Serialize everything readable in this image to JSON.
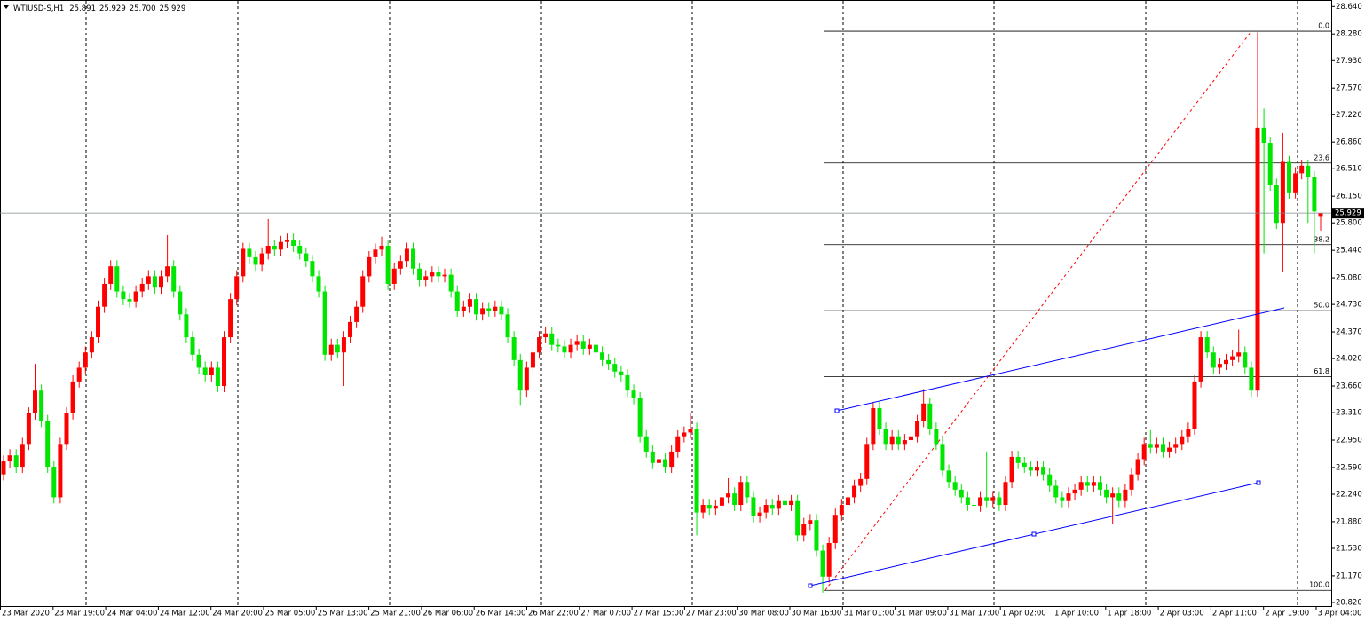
{
  "chart_data": {
    "type": "candlestick",
    "title": "WTIUSD-S,H1",
    "header_values": [
      "25.891",
      "25.929",
      "25.700",
      "25.929"
    ],
    "categories": [
      "23 Mar 2020",
      "23 Mar 19:00",
      "24 Mar 04:00",
      "24 Mar 12:00",
      "24 Mar 20:00",
      "25 Mar 05:00",
      "25 Mar 13:00",
      "25 Mar 21:00",
      "26 Mar 06:00",
      "26 Mar 14:00",
      "26 Mar 22:00",
      "27 Mar 07:00",
      "27 Mar 15:00",
      "27 Mar 23:00",
      "30 Mar 08:00",
      "30 Mar 16:00",
      "31 Mar 01:00",
      "31 Mar 09:00",
      "31 Mar 17:00",
      "1 Apr 02:00",
      "1 Apr 10:00",
      "1 Apr 18:00",
      "2 Apr 03:00",
      "2 Apr 11:00",
      "2 Apr 19:00",
      "3 Apr 04:00"
    ],
    "colors": {
      "up": "#ff0000",
      "down": "#00e600"
    },
    "series": {
      "open": [
        22.5,
        22.67,
        22.75,
        22.6,
        22.9,
        23.3,
        23.6,
        23.2,
        22.6,
        22.2,
        22.9,
        23.3,
        23.72,
        23.9,
        24.1,
        24.3,
        24.7,
        25.0,
        25.23,
        24.9,
        24.8,
        24.77,
        24.9,
        25.0,
        25.1,
        24.95,
        25.1,
        25.23,
        24.9,
        24.6,
        24.3,
        24.07,
        23.9,
        23.8,
        23.9,
        23.66,
        24.3,
        24.8,
        25.1,
        25.46,
        25.35,
        25.25,
        25.4,
        25.5,
        25.45,
        25.55,
        25.58,
        25.5,
        25.4,
        25.3,
        25.1,
        24.9,
        24.07,
        24.2,
        24.1,
        24.3,
        24.5,
        24.7,
        25.1,
        25.35,
        25.45,
        25.5,
        25.0,
        25.2,
        25.3,
        25.46,
        25.2,
        25.05,
        25.1,
        25.15,
        25.1,
        25.12,
        24.9,
        24.65,
        24.7,
        24.8,
        24.6,
        24.68,
        24.65,
        24.7,
        24.6,
        24.3,
        24.0,
        23.6,
        23.9,
        24.1,
        24.3,
        24.35,
        24.2,
        24.18,
        24.1,
        24.2,
        24.25,
        24.15,
        24.2,
        24.1,
        24.0,
        23.95,
        23.85,
        23.8,
        23.6,
        23.5,
        23.0,
        22.8,
        22.65,
        22.7,
        22.6,
        22.8,
        23.0,
        23.05,
        23.1,
        22.0,
        22.1,
        22.05,
        22.09,
        22.2,
        22.25,
        22.1,
        22.4,
        22.2,
        21.95,
        22.0,
        22.1,
        22.05,
        22.15,
        22.1,
        22.15,
        21.7,
        21.85,
        21.9,
        21.5,
        21.16,
        21.6,
        21.97,
        22.1,
        22.2,
        22.35,
        22.44,
        22.9,
        23.37,
        23.1,
        22.9,
        23.0,
        22.9,
        22.95,
        23.0,
        23.2,
        23.43,
        23.1,
        22.9,
        22.55,
        22.4,
        22.3,
        22.2,
        22.1,
        22.09,
        22.2,
        22.15,
        22.2,
        22.1,
        22.4,
        22.73,
        22.65,
        22.6,
        22.55,
        22.6,
        22.5,
        22.35,
        22.2,
        22.15,
        22.25,
        22.3,
        22.4,
        22.35,
        22.4,
        22.3,
        22.2,
        22.25,
        22.15,
        22.3,
        22.5,
        22.7,
        22.9,
        22.85,
        22.9,
        22.8,
        22.85,
        22.9,
        23.0,
        23.1,
        23.72,
        24.3,
        24.1,
        23.9,
        23.95,
        24.0,
        24.05,
        24.1,
        23.9,
        23.6,
        27.05,
        26.85,
        26.3,
        25.8,
        26.6,
        26.2,
        26.45,
        26.55,
        26.4,
        25.891
      ],
      "high": [
        22.75,
        22.83,
        22.83,
        22.98,
        23.38,
        23.95,
        23.68,
        23.28,
        22.68,
        22.98,
        23.38,
        23.8,
        23.98,
        24.18,
        24.38,
        24.78,
        25.08,
        25.31,
        25.31,
        24.98,
        24.88,
        24.98,
        25.08,
        25.18,
        25.18,
        25.18,
        25.64,
        25.31,
        24.98,
        24.68,
        24.38,
        24.15,
        23.98,
        23.98,
        23.98,
        24.38,
        24.88,
        25.18,
        25.54,
        25.54,
        25.43,
        25.48,
        25.85,
        25.58,
        25.63,
        25.66,
        25.66,
        25.58,
        25.48,
        25.38,
        25.18,
        24.98,
        24.28,
        24.28,
        24.38,
        24.58,
        24.78,
        25.18,
        25.43,
        25.53,
        25.62,
        25.58,
        25.28,
        25.38,
        25.54,
        25.54,
        25.28,
        25.18,
        25.23,
        25.23,
        25.2,
        25.2,
        24.98,
        24.78,
        24.88,
        24.88,
        24.76,
        24.76,
        24.78,
        24.78,
        24.68,
        24.38,
        24.08,
        23.98,
        24.18,
        24.38,
        24.43,
        24.43,
        24.28,
        24.26,
        24.28,
        24.33,
        24.33,
        24.28,
        24.28,
        24.18,
        24.08,
        24.03,
        23.93,
        23.88,
        23.68,
        23.58,
        23.08,
        22.88,
        22.78,
        22.78,
        22.88,
        23.08,
        23.13,
        23.3,
        23.18,
        22.18,
        22.18,
        22.17,
        22.28,
        22.45,
        22.33,
        22.48,
        22.48,
        22.28,
        22.08,
        22.18,
        22.18,
        22.23,
        22.23,
        22.23,
        22.23,
        21.93,
        21.98,
        21.98,
        21.58,
        21.68,
        22.05,
        22.18,
        22.28,
        22.43,
        22.52,
        22.98,
        23.45,
        23.45,
        23.18,
        23.08,
        23.08,
        23.03,
        23.08,
        23.28,
        23.62,
        23.51,
        23.18,
        22.98,
        22.63,
        22.48,
        22.38,
        22.28,
        22.18,
        22.28,
        22.8,
        22.28,
        22.28,
        22.48,
        22.81,
        22.81,
        22.73,
        22.68,
        22.68,
        22.68,
        22.58,
        22.43,
        22.28,
        22.33,
        22.38,
        22.48,
        22.48,
        22.48,
        22.48,
        22.38,
        22.33,
        22.33,
        22.38,
        22.58,
        22.78,
        22.98,
        23.08,
        22.98,
        22.98,
        22.93,
        22.98,
        23.08,
        23.18,
        23.8,
        24.38,
        24.38,
        24.18,
        24.03,
        24.08,
        24.13,
        24.4,
        24.18,
        23.98,
        28.3,
        27.3,
        26.93,
        26.38,
        26.98,
        26.68,
        26.53,
        26.63,
        26.63,
        26.48,
        25.929
      ],
      "low": [
        22.42,
        22.59,
        22.52,
        22.52,
        22.82,
        23.22,
        23.12,
        22.52,
        22.12,
        22.12,
        22.82,
        23.22,
        23.64,
        23.82,
        24.02,
        24.22,
        24.62,
        24.92,
        24.82,
        24.72,
        24.69,
        24.69,
        24.82,
        24.92,
        24.87,
        24.87,
        25.02,
        24.82,
        24.52,
        24.22,
        23.99,
        23.82,
        23.72,
        23.72,
        23.58,
        23.58,
        24.22,
        24.72,
        25.02,
        25.27,
        25.17,
        25.17,
        25.32,
        25.37,
        25.37,
        25.47,
        25.42,
        25.32,
        25.22,
        25.02,
        24.82,
        23.99,
        23.99,
        24.02,
        23.66,
        24.22,
        24.42,
        24.62,
        25.02,
        25.27,
        25.37,
        24.92,
        24.92,
        25.12,
        25.22,
        25.12,
        24.97,
        24.97,
        25.02,
        25.02,
        25.02,
        24.82,
        24.57,
        24.57,
        24.62,
        24.52,
        24.52,
        24.57,
        24.57,
        24.52,
        24.22,
        23.92,
        23.4,
        23.52,
        23.82,
        24.02,
        24.22,
        24.12,
        24.1,
        24.02,
        24.02,
        24.12,
        24.07,
        24.07,
        24.02,
        23.92,
        23.87,
        23.77,
        23.72,
        23.52,
        23.42,
        22.92,
        22.72,
        22.57,
        22.57,
        22.52,
        22.52,
        22.72,
        22.92,
        22.97,
        21.7,
        21.92,
        21.97,
        21.97,
        22.01,
        22.12,
        22.02,
        22.02,
        22.12,
        21.87,
        21.87,
        21.92,
        21.97,
        21.97,
        22.02,
        22.02,
        21.62,
        21.62,
        21.77,
        21.42,
        20.95,
        21.08,
        21.52,
        21.89,
        22.02,
        22.12,
        22.27,
        22.36,
        22.82,
        23.02,
        22.82,
        22.82,
        22.82,
        22.82,
        22.87,
        22.92,
        23.12,
        23.02,
        22.82,
        22.47,
        22.32,
        22.22,
        22.12,
        22.02,
        21.9,
        22.01,
        22.07,
        22.07,
        22.02,
        22.02,
        22.32,
        22.57,
        22.52,
        22.47,
        22.47,
        22.42,
        22.27,
        22.12,
        22.07,
        22.07,
        22.17,
        22.22,
        22.27,
        22.27,
        22.22,
        22.12,
        21.85,
        22.07,
        22.07,
        22.22,
        22.42,
        22.62,
        22.77,
        22.77,
        22.72,
        22.72,
        22.77,
        22.82,
        22.92,
        23.02,
        23.64,
        24.02,
        23.82,
        23.82,
        23.87,
        23.92,
        23.97,
        23.82,
        23.52,
        23.52,
        25.4,
        26.22,
        25.72,
        25.15,
        26.12,
        26.12,
        26.37,
        25.8,
        25.4,
        25.7
      ],
      "close": [
        22.67,
        22.75,
        22.6,
        22.9,
        23.3,
        23.6,
        23.2,
        22.6,
        22.2,
        22.9,
        23.3,
        23.72,
        23.9,
        24.1,
        24.3,
        24.7,
        25.0,
        25.23,
        24.9,
        24.8,
        24.77,
        24.9,
        25.0,
        25.1,
        24.95,
        25.1,
        25.23,
        24.9,
        24.6,
        24.3,
        24.07,
        23.9,
        23.8,
        23.9,
        23.66,
        24.3,
        24.8,
        25.1,
        25.46,
        25.35,
        25.25,
        25.4,
        25.5,
        25.45,
        25.55,
        25.58,
        25.5,
        25.4,
        25.3,
        25.1,
        24.9,
        24.07,
        24.2,
        24.1,
        24.3,
        24.5,
        24.7,
        25.1,
        25.35,
        25.45,
        25.5,
        25.0,
        25.2,
        25.3,
        25.46,
        25.2,
        25.05,
        25.1,
        25.15,
        25.1,
        25.12,
        24.9,
        24.65,
        24.7,
        24.8,
        24.6,
        24.68,
        24.65,
        24.7,
        24.6,
        24.3,
        24.0,
        23.6,
        23.9,
        24.1,
        24.3,
        24.35,
        24.2,
        24.18,
        24.1,
        24.2,
        24.25,
        24.15,
        24.2,
        24.1,
        24.0,
        23.95,
        23.85,
        23.8,
        23.6,
        23.5,
        23.0,
        22.8,
        22.65,
        22.7,
        22.6,
        22.8,
        23.0,
        23.05,
        23.1,
        22.0,
        22.1,
        22.05,
        22.09,
        22.2,
        22.25,
        22.1,
        22.4,
        22.2,
        21.95,
        22.0,
        22.1,
        22.05,
        22.15,
        22.1,
        22.15,
        21.7,
        21.85,
        21.9,
        21.5,
        21.16,
        21.6,
        21.97,
        22.1,
        22.2,
        22.35,
        22.44,
        22.9,
        23.37,
        23.1,
        22.9,
        23.0,
        22.9,
        22.95,
        23.0,
        23.2,
        23.43,
        23.1,
        22.9,
        22.55,
        22.4,
        22.3,
        22.2,
        22.1,
        22.09,
        22.2,
        22.15,
        22.2,
        22.1,
        22.4,
        22.73,
        22.65,
        22.6,
        22.55,
        22.6,
        22.5,
        22.35,
        22.2,
        22.15,
        22.25,
        22.3,
        22.4,
        22.35,
        22.4,
        22.3,
        22.2,
        22.25,
        22.15,
        22.3,
        22.5,
        22.7,
        22.9,
        22.85,
        22.9,
        22.8,
        22.85,
        22.9,
        23.0,
        23.1,
        23.72,
        24.3,
        24.1,
        23.9,
        23.95,
        24.0,
        24.05,
        24.1,
        23.9,
        23.6,
        27.05,
        26.85,
        26.3,
        25.8,
        26.6,
        26.2,
        26.45,
        26.55,
        26.4,
        25.95,
        25.929
      ]
    },
    "ylim": [
      20.773,
      28.725
    ],
    "yticks": [
      {
        "value": 28.64,
        "label": "28.640"
      },
      {
        "value": 28.28,
        "label": "28.280"
      },
      {
        "value": 27.93,
        "label": "27.930"
      },
      {
        "value": 27.57,
        "label": "27.570"
      },
      {
        "value": 27.22,
        "label": "27.220"
      },
      {
        "value": 26.86,
        "label": "26.860"
      },
      {
        "value": 26.51,
        "label": "26.510"
      },
      {
        "value": 26.15,
        "label": "26.150"
      },
      {
        "value": 25.8,
        "label": "25.800"
      },
      {
        "value": 25.44,
        "label": "25.440"
      },
      {
        "value": 25.08,
        "label": "25.080"
      },
      {
        "value": 24.73,
        "label": "24.730"
      },
      {
        "value": 24.37,
        "label": "24.370"
      },
      {
        "value": 24.02,
        "label": "24.020"
      },
      {
        "value": 23.66,
        "label": "23.660"
      },
      {
        "value": 23.31,
        "label": "23.310"
      },
      {
        "value": 22.95,
        "label": "22.950"
      },
      {
        "value": 22.59,
        "label": "22.590"
      },
      {
        "value": 22.24,
        "label": "22.240"
      },
      {
        "value": 21.88,
        "label": "21.880"
      },
      {
        "value": 21.53,
        "label": "21.530"
      },
      {
        "value": 21.17,
        "label": "21.170"
      },
      {
        "value": 20.82,
        "label": "20.820"
      }
    ],
    "current_price": {
      "value": 25.929,
      "label": "25.929"
    },
    "fibonacci": {
      "high": 28.317,
      "low": 20.98,
      "levels": [
        {
          "value": 0,
          "label": "0.0"
        },
        {
          "value": 23.6,
          "label": "23.6"
        },
        {
          "value": 38.2,
          "label": "38.2"
        },
        {
          "value": 50,
          "label": "50.0"
        },
        {
          "value": 61.8,
          "label": "61.8"
        },
        {
          "value": 100,
          "label": "100.0"
        }
      ]
    }
  }
}
